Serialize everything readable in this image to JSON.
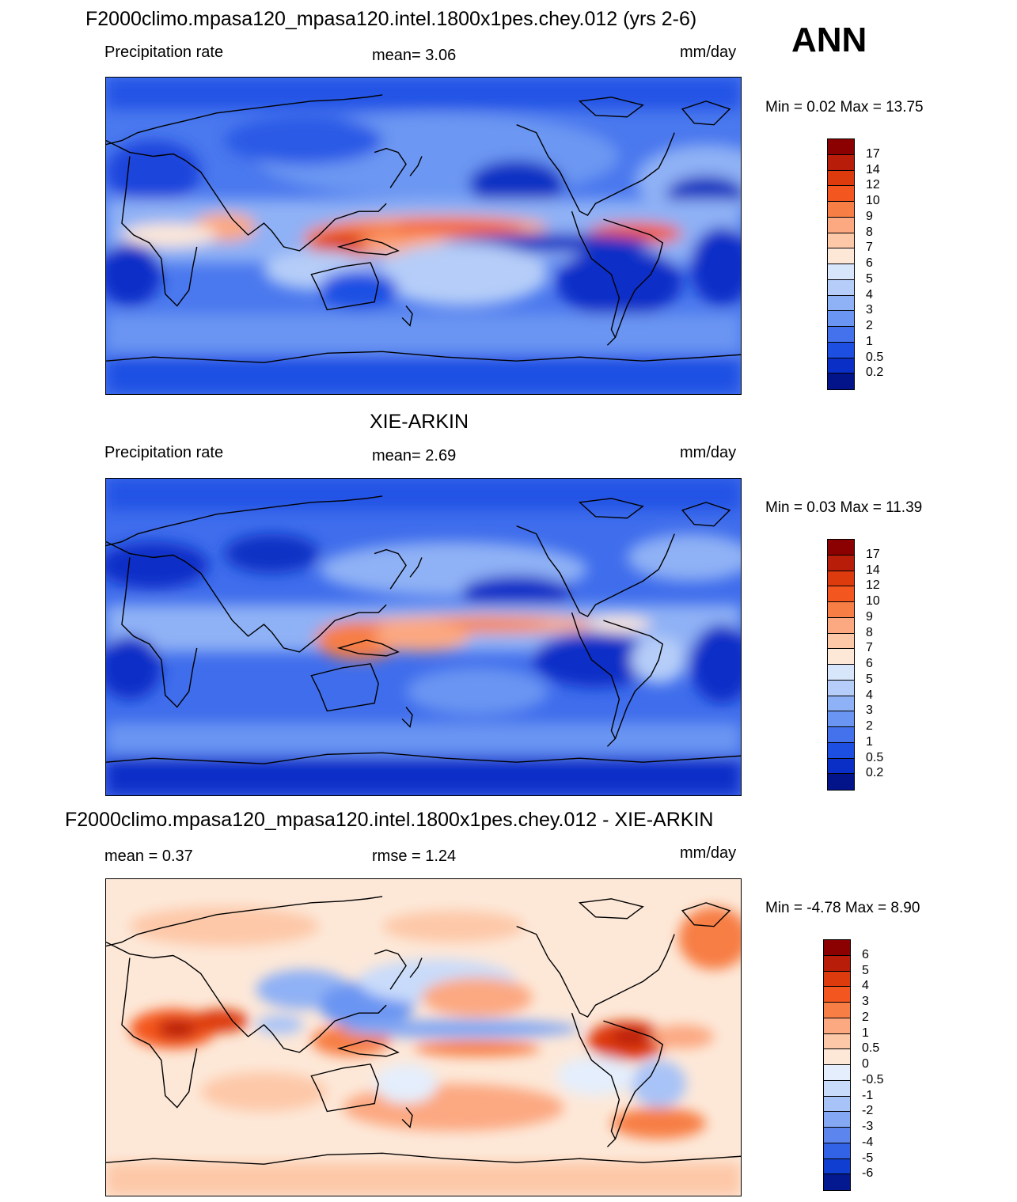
{
  "season": "ANN",
  "panels": [
    {
      "id": "model",
      "title": "F2000climo.mpasa120_mpasa120.intel.1800x1pes.chey.012 (yrs 2-6)",
      "left_label": "Precipitation rate",
      "center_label": "mean=   3.06",
      "right_label": "mm/day",
      "minmax": "Min =   0.02 Max =  13.75"
    },
    {
      "id": "obs",
      "title": "XIE-ARKIN",
      "left_label": "Precipitation rate",
      "center_label": "mean=   2.69",
      "right_label": "mm/day",
      "minmax": "Min =   0.03 Max =  11.39"
    },
    {
      "id": "diff",
      "title": "F2000climo.mpasa120_mpasa120.intel.1800x1pes.chey.012 - XIE-ARKIN",
      "left_label": "mean =   0.37",
      "center_label": "rmse =   1.24",
      "right_label": "mm/day",
      "minmax": "Min =  -4.78 Max =   8.90"
    }
  ],
  "colorbars": {
    "precip": {
      "labels": [
        "17",
        "14",
        "12",
        "10",
        "9",
        "8",
        "7",
        "6",
        "5",
        "4",
        "3",
        "2",
        "1",
        "0.5",
        "0.2"
      ],
      "colors": [
        "#8b0000",
        "#b81d0a",
        "#dd3b0e",
        "#f4561f",
        "#f77e44",
        "#fca881",
        "#fdc8a8",
        "#fde8d8",
        "#d8e6fb",
        "#b5cdf8",
        "#8fb1f5",
        "#6a95f2",
        "#4472ec",
        "#1e4fe3",
        "#0a2fc7",
        "#03148a"
      ]
    },
    "diff": {
      "labels": [
        "6",
        "5",
        "4",
        "3",
        "2",
        "1",
        "0.5",
        "0",
        "-0.5",
        "-1",
        "-2",
        "-3",
        "-4",
        "-5",
        "-6"
      ],
      "colors": [
        "#8b0000",
        "#b81d0a",
        "#dd3b0e",
        "#f4561f",
        "#f77e44",
        "#fca881",
        "#fdc8a8",
        "#fde8d8",
        "#e4eefc",
        "#c9dbfa",
        "#a8c3f7",
        "#84a8f3",
        "#5c86ee",
        "#3262e6",
        "#0f3ed0",
        "#04188f"
      ]
    }
  }
}
